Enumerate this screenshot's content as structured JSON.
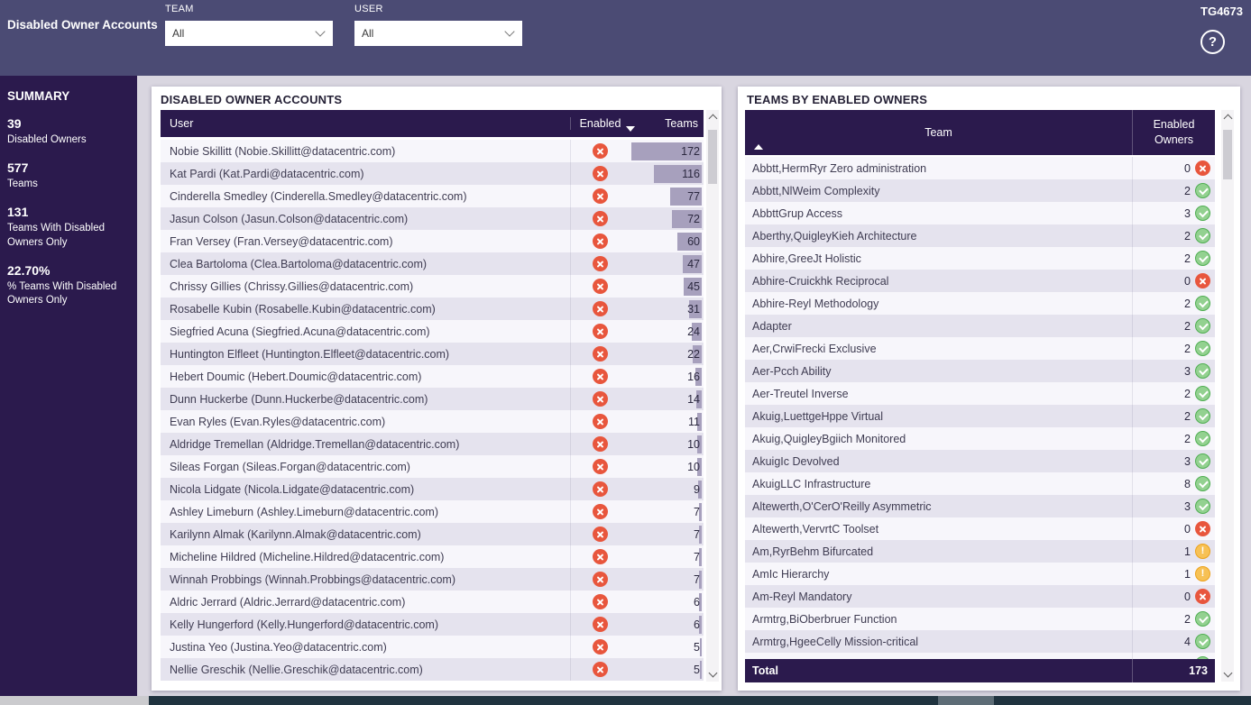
{
  "header": {
    "title": "Disabled Owner Accounts",
    "report_id": "TG4673",
    "help_icon": "?",
    "filters": [
      {
        "label": "TEAM",
        "value": "All"
      },
      {
        "label": "USER",
        "value": "All"
      }
    ]
  },
  "summary": {
    "title": "SUMMARY",
    "stats": [
      {
        "value": "39",
        "label": "Disabled Owners"
      },
      {
        "value": "577",
        "label": "Teams"
      },
      {
        "value": "131",
        "label": "Teams With Disabled Owners Only"
      },
      {
        "value": "22.70%",
        "label": "% Teams With Disabled Owners Only"
      }
    ]
  },
  "users_table": {
    "title": "DISABLED OWNER ACCOUNTS",
    "columns": [
      "User",
      "Enabled",
      "Teams"
    ],
    "sort": {
      "column": "Teams",
      "direction": "desc"
    },
    "max_teams": 172,
    "rows": [
      {
        "user": "Nobie Skillitt (Nobie.Skillitt@datacentric.com)",
        "enabled": false,
        "teams": 172
      },
      {
        "user": "Kat Pardi (Kat.Pardi@datacentric.com)",
        "enabled": false,
        "teams": 116
      },
      {
        "user": "Cinderella Smedley (Cinderella.Smedley@datacentric.com)",
        "enabled": false,
        "teams": 77
      },
      {
        "user": "Jasun Colson (Jasun.Colson@datacentric.com)",
        "enabled": false,
        "teams": 72
      },
      {
        "user": "Fran Versey (Fran.Versey@datacentric.com)",
        "enabled": false,
        "teams": 60
      },
      {
        "user": "Clea Bartoloma (Clea.Bartoloma@datacentric.com)",
        "enabled": false,
        "teams": 47
      },
      {
        "user": "Chrissy Gillies (Chrissy.Gillies@datacentric.com)",
        "enabled": false,
        "teams": 45
      },
      {
        "user": "Rosabelle Kubin (Rosabelle.Kubin@datacentric.com)",
        "enabled": false,
        "teams": 31
      },
      {
        "user": "Siegfried Acuna (Siegfried.Acuna@datacentric.com)",
        "enabled": false,
        "teams": 24
      },
      {
        "user": "Huntington Elfleet (Huntington.Elfleet@datacentric.com)",
        "enabled": false,
        "teams": 22
      },
      {
        "user": "Hebert Doumic (Hebert.Doumic@datacentric.com)",
        "enabled": false,
        "teams": 16
      },
      {
        "user": "Dunn Huckerbe (Dunn.Huckerbe@datacentric.com)",
        "enabled": false,
        "teams": 14
      },
      {
        "user": "Evan Ryles (Evan.Ryles@datacentric.com)",
        "enabled": false,
        "teams": 11
      },
      {
        "user": "Aldridge Tremellan (Aldridge.Tremellan@datacentric.com)",
        "enabled": false,
        "teams": 10
      },
      {
        "user": "Sileas Forgan (Sileas.Forgan@datacentric.com)",
        "enabled": false,
        "teams": 10
      },
      {
        "user": "Nicola Lidgate (Nicola.Lidgate@datacentric.com)",
        "enabled": false,
        "teams": 9
      },
      {
        "user": "Ashley Limeburn (Ashley.Limeburn@datacentric.com)",
        "enabled": false,
        "teams": 7
      },
      {
        "user": "Karilynn Almak (Karilynn.Almak@datacentric.com)",
        "enabled": false,
        "teams": 7
      },
      {
        "user": "Micheline Hildred (Micheline.Hildred@datacentric.com)",
        "enabled": false,
        "teams": 7
      },
      {
        "user": "Winnah Probbings (Winnah.Probbings@datacentric.com)",
        "enabled": false,
        "teams": 7
      },
      {
        "user": "Aldric Jerrard (Aldric.Jerrard@datacentric.com)",
        "enabled": false,
        "teams": 6
      },
      {
        "user": "Kelly Hungerford (Kelly.Hungerford@datacentric.com)",
        "enabled": false,
        "teams": 6
      },
      {
        "user": "Justina Yeo (Justina.Yeo@datacentric.com)",
        "enabled": false,
        "teams": 5
      },
      {
        "user": "Nellie Greschik (Nellie.Greschik@datacentric.com)",
        "enabled": false,
        "teams": 5
      }
    ]
  },
  "teams_table": {
    "title": "TEAMS BY ENABLED OWNERS",
    "columns": [
      "Team",
      "Enabled Owners"
    ],
    "sort": {
      "column": "Team",
      "direction": "asc"
    },
    "rows": [
      {
        "team": "Abbtt,HermRyr Zero administration",
        "enabled_owners": 0,
        "status": "error"
      },
      {
        "team": "Abbtt,NlWeim Complexity",
        "enabled_owners": 2,
        "status": "ok"
      },
      {
        "team": "AbbttGrup Access",
        "enabled_owners": 3,
        "status": "ok"
      },
      {
        "team": "Aberthy,QuigleyKieh Architecture",
        "enabled_owners": 2,
        "status": "ok"
      },
      {
        "team": "Abhire,GreeJt Holistic",
        "enabled_owners": 2,
        "status": "ok"
      },
      {
        "team": "Abhire-Cruickhk Reciprocal",
        "enabled_owners": 0,
        "status": "error"
      },
      {
        "team": "Abhire-Reyl Methodology",
        "enabled_owners": 2,
        "status": "ok"
      },
      {
        "team": "Adapter",
        "enabled_owners": 2,
        "status": "ok"
      },
      {
        "team": "Aer,CrwiFrecki Exclusive",
        "enabled_owners": 2,
        "status": "ok"
      },
      {
        "team": "Aer-Pcch Ability",
        "enabled_owners": 3,
        "status": "ok"
      },
      {
        "team": "Aer-Treutel Inverse",
        "enabled_owners": 2,
        "status": "ok"
      },
      {
        "team": "Akuig,LuettgeHppe Virtual",
        "enabled_owners": 2,
        "status": "ok"
      },
      {
        "team": "Akuig,QuigleyBgiich Monitored",
        "enabled_owners": 2,
        "status": "ok"
      },
      {
        "team": "AkuigIc Devolved",
        "enabled_owners": 3,
        "status": "ok"
      },
      {
        "team": "AkuigLLC Infrastructure",
        "enabled_owners": 8,
        "status": "ok"
      },
      {
        "team": "Altewerth,O'CerO'Reilly Asymmetric",
        "enabled_owners": 3,
        "status": "ok"
      },
      {
        "team": "Altewerth,VervrtC Toolset",
        "enabled_owners": 0,
        "status": "error"
      },
      {
        "team": "Am,RyrBehm Bifurcated",
        "enabled_owners": 1,
        "status": "warn"
      },
      {
        "team": "AmIc Hierarchy",
        "enabled_owners": 1,
        "status": "warn"
      },
      {
        "team": "Am-Reyl Mandatory",
        "enabled_owners": 0,
        "status": "error"
      },
      {
        "team": "Armtrg,BiOberbruer Function",
        "enabled_owners": 2,
        "status": "ok"
      },
      {
        "team": "Armtrg,HgeeCelly Mission-critical",
        "enabled_owners": 4,
        "status": "ok"
      },
      {
        "team": "",
        "enabled_owners": null,
        "status": "ok",
        "partial": true
      }
    ],
    "total_label": "Total",
    "total_value": "173"
  },
  "colors": {
    "theme_dark_purple": "#2b1a4d",
    "header_slate": "#4b4b74",
    "status_disabled_red": "#e8563d",
    "status_ok_green": "#4fae52",
    "status_warn_yellow": "#eca21b",
    "databar_purple": "#a7a0bd"
  },
  "icons": {
    "help": "question-circle",
    "disabled": "x-circle",
    "ok": "check-circle",
    "warning": "exclamation-circle"
  }
}
